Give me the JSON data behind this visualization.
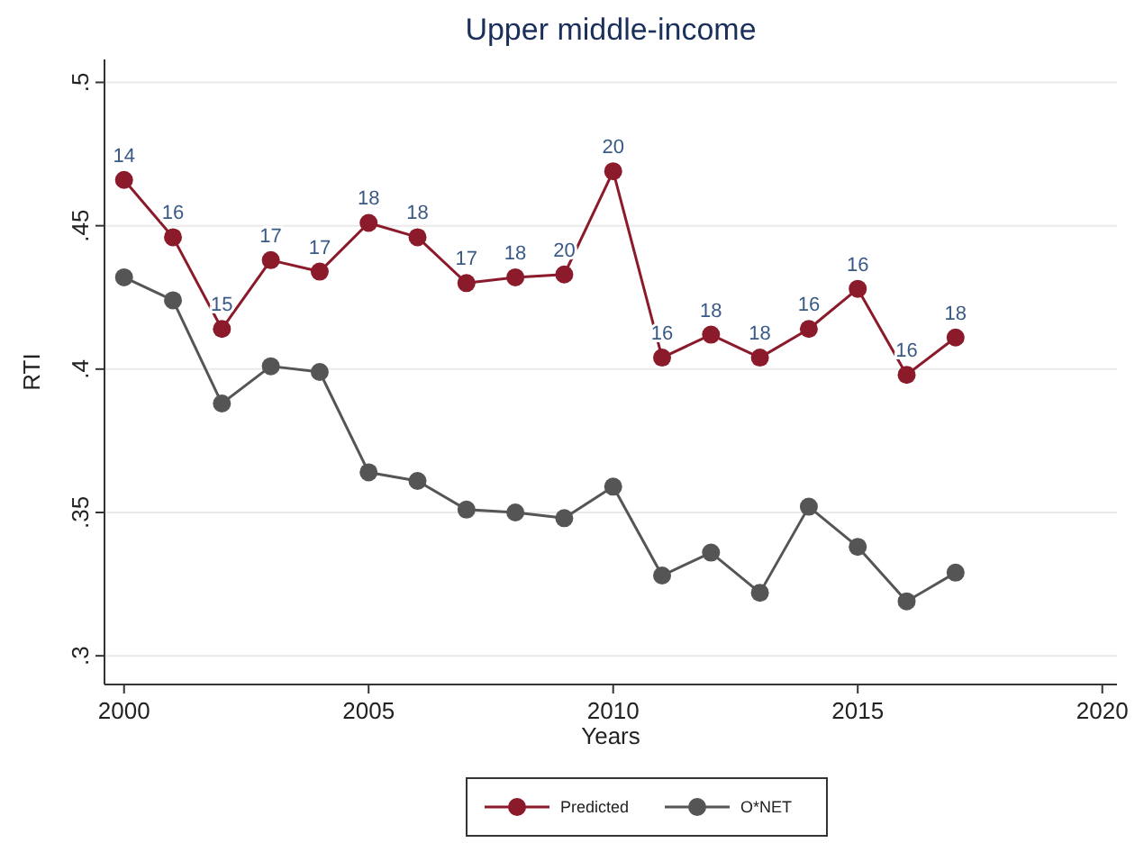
{
  "chart_data": {
    "type": "line",
    "title": "Upper middle-income",
    "xlabel": "Years",
    "ylabel": "RTI",
    "x": [
      2000,
      2001,
      2002,
      2003,
      2004,
      2005,
      2006,
      2007,
      2008,
      2009,
      2010,
      2011,
      2012,
      2013,
      2014,
      2015,
      2016,
      2017
    ],
    "series": [
      {
        "name": "Predicted",
        "color": "#8b1a2b",
        "values": [
          0.466,
          0.446,
          0.414,
          0.438,
          0.434,
          0.451,
          0.446,
          0.43,
          0.432,
          0.433,
          0.469,
          0.404,
          0.412,
          0.404,
          0.414,
          0.428,
          0.398,
          0.411
        ]
      },
      {
        "name": "O*NET",
        "color": "#555555",
        "values": [
          0.432,
          0.424,
          0.388,
          0.401,
          0.399,
          0.364,
          0.361,
          0.351,
          0.35,
          0.348,
          0.359,
          0.328,
          0.336,
          0.322,
          0.352,
          0.338,
          0.319,
          0.329
        ]
      }
    ],
    "xlim": [
      1999.6,
      2020.3
    ],
    "ylim": [
      0.29,
      0.508
    ],
    "xticks": [
      2000,
      2005,
      2010,
      2015,
      2020
    ],
    "yticks": [
      {
        "value": 0.3,
        "label": ".3"
      },
      {
        "value": 0.35,
        "label": ".35"
      },
      {
        "value": 0.4,
        "label": ".4"
      },
      {
        "value": 0.45,
        "label": ".45"
      },
      {
        "value": 0.5,
        "label": ".5"
      }
    ],
    "annotations": [
      {
        "text": "14",
        "x": 2000,
        "y": 0.466
      },
      {
        "text": "16",
        "x": 2001,
        "y": 0.446
      },
      {
        "text": "15",
        "x": 2002,
        "y": 0.414
      },
      {
        "text": "17",
        "x": 2003,
        "y": 0.438
      },
      {
        "text": "17",
        "x": 2004,
        "y": 0.434
      },
      {
        "text": "18",
        "x": 2005,
        "y": 0.451
      },
      {
        "text": "18",
        "x": 2006,
        "y": 0.446
      },
      {
        "text": "17",
        "x": 2007,
        "y": 0.43
      },
      {
        "text": "18",
        "x": 2008,
        "y": 0.432
      },
      {
        "text": "20",
        "x": 2009,
        "y": 0.433
      },
      {
        "text": "20",
        "x": 2010,
        "y": 0.469
      },
      {
        "text": "16",
        "x": 2011,
        "y": 0.404
      },
      {
        "text": "18",
        "x": 2012,
        "y": 0.412
      },
      {
        "text": "18",
        "x": 2013,
        "y": 0.404
      },
      {
        "text": "16",
        "x": 2014,
        "y": 0.414
      },
      {
        "text": "16",
        "x": 2015,
        "y": 0.428
      },
      {
        "text": "16",
        "x": 2016,
        "y": 0.398
      },
      {
        "text": "18",
        "x": 2017,
        "y": 0.411
      }
    ],
    "grid": "y",
    "legend": "bottom",
    "marker": "circle",
    "line_style": "solid"
  }
}
